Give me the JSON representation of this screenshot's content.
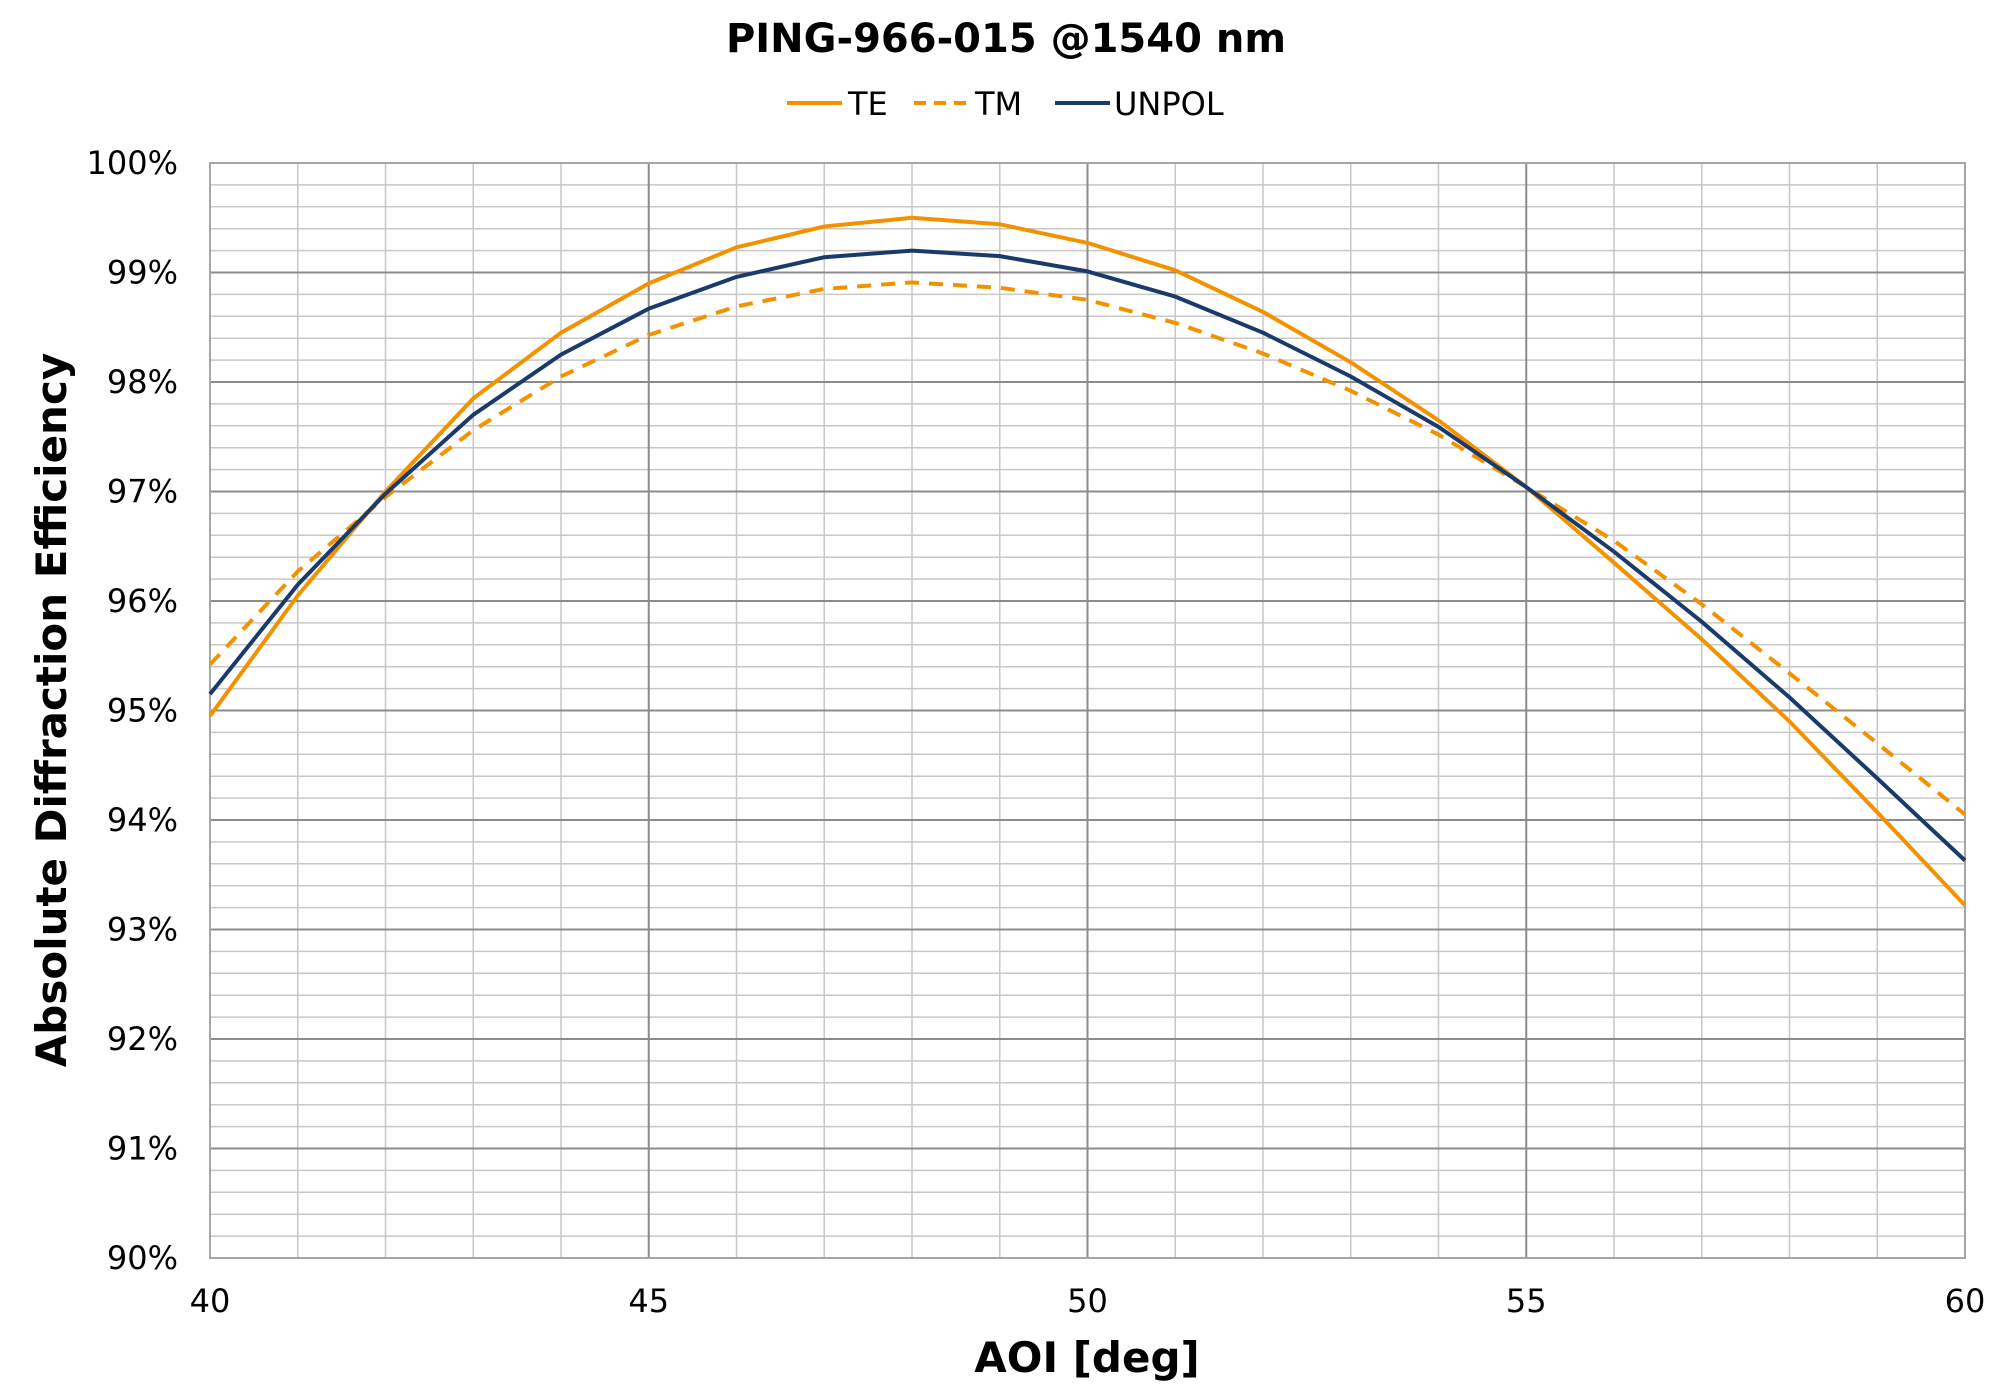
{
  "chart_data": {
    "type": "line",
    "title": "PING-966-015 @1540 nm",
    "xlabel": "AOI [deg]",
    "ylabel": "Absolute Diffraction Efficiency",
    "xlim": [
      40,
      60
    ],
    "ylim": [
      90,
      100
    ],
    "x_ticks": [
      40,
      45,
      50,
      55,
      60
    ],
    "x_tick_labels": [
      "40",
      "45",
      "50",
      "55",
      "60"
    ],
    "y_ticks": [
      90,
      91,
      92,
      93,
      94,
      95,
      96,
      97,
      98,
      99,
      100
    ],
    "y_tick_labels": [
      "90%",
      "91%",
      "92%",
      "93%",
      "94%",
      "95%",
      "96%",
      "97%",
      "98%",
      "99%",
      "100%"
    ],
    "grid": true,
    "legend_position": "top-center",
    "x": [
      40,
      41,
      42,
      43,
      44,
      45,
      46,
      47,
      48,
      49,
      50,
      51,
      52,
      53,
      54,
      55,
      56,
      57,
      58,
      59,
      60
    ],
    "series": [
      {
        "name": "TE",
        "color": "#f39200",
        "style": "solid",
        "values": [
          94.95,
          96.05,
          97.0,
          97.85,
          98.45,
          98.9,
          99.23,
          99.42,
          99.5,
          99.44,
          99.27,
          99.02,
          98.64,
          98.18,
          97.65,
          97.04,
          96.35,
          95.65,
          94.9,
          94.07,
          93.22
        ]
      },
      {
        "name": "TM",
        "color": "#f39200",
        "style": "dashed",
        "values": [
          95.42,
          96.27,
          96.95,
          97.56,
          98.05,
          98.43,
          98.69,
          98.85,
          98.91,
          98.86,
          98.75,
          98.54,
          98.26,
          97.92,
          97.52,
          97.04,
          96.55,
          95.97,
          95.34,
          94.7,
          94.05
        ]
      },
      {
        "name": "UNPOL",
        "color": "#1a3a6b",
        "style": "solid",
        "values": [
          95.15,
          96.15,
          96.98,
          97.7,
          98.25,
          98.67,
          98.96,
          99.14,
          99.2,
          99.15,
          99.01,
          98.78,
          98.45,
          98.05,
          97.59,
          97.04,
          96.45,
          95.81,
          95.12,
          94.38,
          93.63
        ]
      }
    ]
  }
}
